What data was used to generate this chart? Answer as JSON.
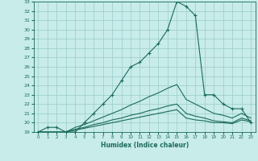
{
  "xlabel": "Humidex (Indice chaleur)",
  "ylabel": "",
  "background_color": "#c8ecea",
  "grid_color": "#a0d0ce",
  "line_color": "#1a6b5a",
  "xlim": [
    -0.5,
    23.5
  ],
  "ylim": [
    19,
    33
  ],
  "xticks": [
    0,
    1,
    2,
    3,
    4,
    5,
    6,
    7,
    8,
    9,
    10,
    11,
    12,
    13,
    14,
    15,
    16,
    17,
    18,
    19,
    20,
    21,
    22,
    23
  ],
  "yticks": [
    19,
    20,
    21,
    22,
    23,
    24,
    25,
    26,
    27,
    28,
    29,
    30,
    31,
    32,
    33
  ],
  "lines": [
    {
      "x": [
        0,
        1,
        2,
        3,
        4,
        5,
        6,
        7,
        8,
        9,
        10,
        11,
        12,
        13,
        14,
        15,
        16,
        17,
        18,
        19,
        20,
        21,
        22,
        23
      ],
      "y": [
        19,
        19.5,
        19.5,
        19,
        19,
        20,
        21,
        22,
        23,
        24.5,
        26,
        26.5,
        27.5,
        28.5,
        30,
        33,
        32.5,
        31.5,
        23,
        23,
        22,
        21.5,
        21.5,
        20
      ],
      "marker": "+"
    },
    {
      "x": [
        0,
        1,
        2,
        3,
        4,
        5,
        6,
        7,
        8,
        9,
        10,
        11,
        12,
        13,
        14,
        15,
        16,
        17,
        18,
        19,
        20,
        21,
        22,
        23
      ],
      "y": [
        19,
        19,
        19,
        19,
        19.5,
        19.8,
        20.2,
        20.6,
        21.0,
        21.4,
        21.9,
        22.3,
        22.8,
        23.2,
        23.7,
        24.1,
        22.5,
        22.0,
        21.5,
        21.0,
        20.8,
        20.5,
        21.0,
        20.5
      ],
      "marker": null
    },
    {
      "x": [
        0,
        1,
        2,
        3,
        4,
        5,
        6,
        7,
        8,
        9,
        10,
        11,
        12,
        13,
        14,
        15,
        16,
        17,
        18,
        19,
        20,
        21,
        22,
        23
      ],
      "y": [
        19,
        19,
        19,
        19,
        19.3,
        19.5,
        19.8,
        20.0,
        20.3,
        20.5,
        20.8,
        21.0,
        21.3,
        21.5,
        21.8,
        22.0,
        21.0,
        20.7,
        20.5,
        20.2,
        20.1,
        20.0,
        20.5,
        20.2
      ],
      "marker": null
    },
    {
      "x": [
        0,
        1,
        2,
        3,
        4,
        5,
        6,
        7,
        8,
        9,
        10,
        11,
        12,
        13,
        14,
        15,
        16,
        17,
        18,
        19,
        20,
        21,
        22,
        23
      ],
      "y": [
        19,
        19,
        19,
        19,
        19.2,
        19.4,
        19.6,
        19.8,
        20.0,
        20.2,
        20.4,
        20.6,
        20.8,
        21.0,
        21.2,
        21.4,
        20.5,
        20.3,
        20.2,
        20.0,
        20.0,
        19.9,
        20.3,
        20.1
      ],
      "marker": null
    }
  ]
}
